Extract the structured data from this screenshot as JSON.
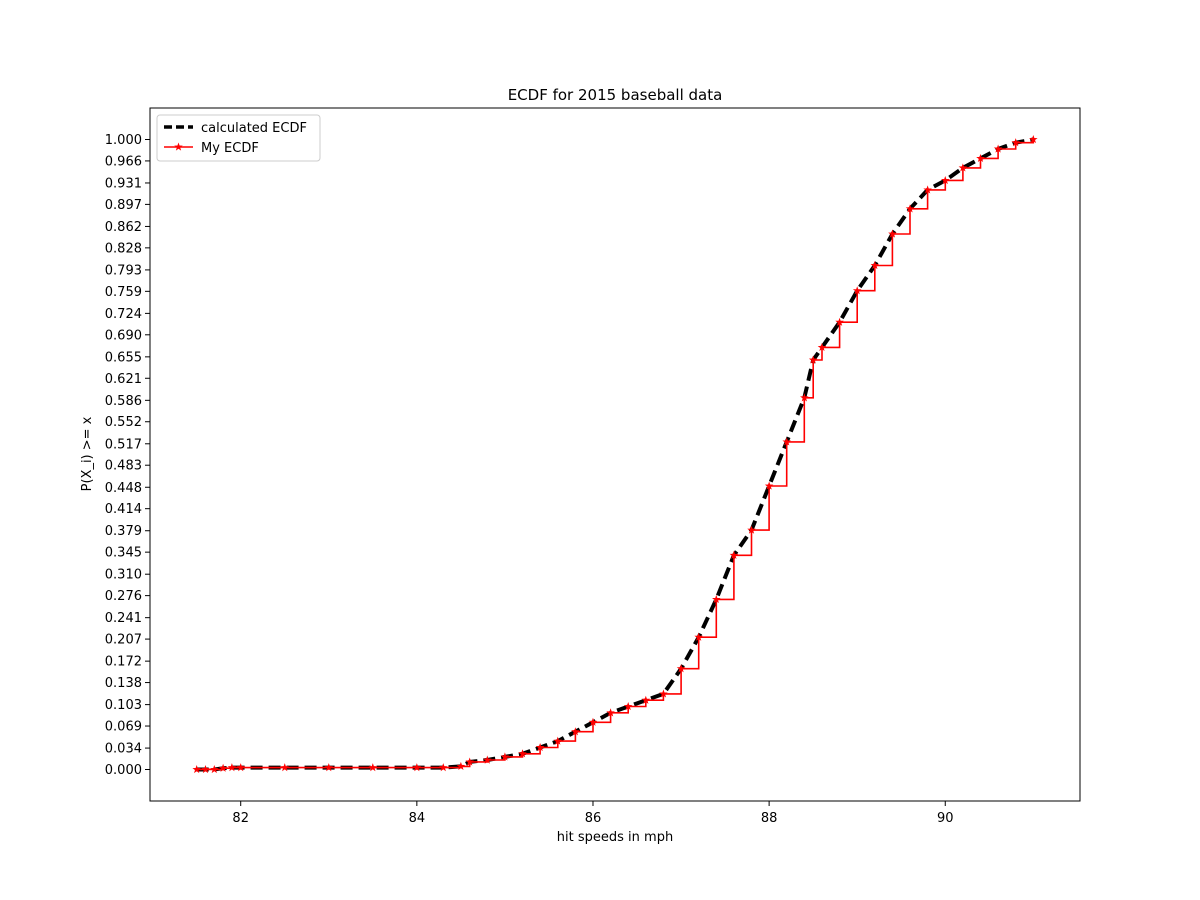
{
  "chart_data": {
    "type": "line",
    "title": "ECDF for 2015 baseball data",
    "xlabel": "hit speeds in mph",
    "ylabel": "P(X_i) >= x",
    "xlim": [
      80.97,
      91.53
    ],
    "ylim": [
      -0.05,
      1.05
    ],
    "x_ticks": [
      "82",
      "84",
      "86",
      "88",
      "90"
    ],
    "y_ticks": [
      "0.000",
      "0.034",
      "0.069",
      "0.103",
      "0.138",
      "0.172",
      "0.207",
      "0.241",
      "0.276",
      "0.310",
      "0.345",
      "0.379",
      "0.414",
      "0.448",
      "0.483",
      "0.517",
      "0.552",
      "0.586",
      "0.621",
      "0.655",
      "0.690",
      "0.724",
      "0.759",
      "0.793",
      "0.828",
      "0.862",
      "0.897",
      "0.931",
      "0.966",
      "1.000"
    ],
    "legend_position": "upper-left",
    "grid": false,
    "series": [
      {
        "name": "calculated ECDF",
        "color": "#000000",
        "style": "dashed",
        "x": [
          81.5,
          81.6,
          81.7,
          81.8,
          81.9,
          82.0,
          82.5,
          83.0,
          83.5,
          84.0,
          84.3,
          84.5,
          84.6,
          84.8,
          85.0,
          85.2,
          85.4,
          85.6,
          85.8,
          86.0,
          86.2,
          86.4,
          86.6,
          86.8,
          87.0,
          87.2,
          87.4,
          87.6,
          87.8,
          88.0,
          88.2,
          88.4,
          88.5,
          88.6,
          88.8,
          89.0,
          89.2,
          89.4,
          89.6,
          89.8,
          90.0,
          90.2,
          90.4,
          90.6,
          90.8,
          91.0
        ],
        "y": [
          0.0,
          0.0,
          0.0,
          0.002,
          0.003,
          0.003,
          0.003,
          0.003,
          0.003,
          0.003,
          0.003,
          0.005,
          0.012,
          0.015,
          0.02,
          0.025,
          0.035,
          0.045,
          0.06,
          0.075,
          0.09,
          0.1,
          0.11,
          0.12,
          0.16,
          0.21,
          0.27,
          0.34,
          0.38,
          0.45,
          0.52,
          0.59,
          0.65,
          0.67,
          0.71,
          0.76,
          0.8,
          0.85,
          0.89,
          0.92,
          0.935,
          0.955,
          0.97,
          0.985,
          0.995,
          1.0
        ]
      },
      {
        "name": "My ECDF",
        "color": "#ff0000",
        "style": "step-star",
        "x": [
          81.5,
          81.6,
          81.7,
          81.8,
          81.9,
          82.0,
          82.5,
          83.0,
          83.5,
          84.0,
          84.3,
          84.5,
          84.6,
          84.8,
          85.0,
          85.2,
          85.4,
          85.6,
          85.8,
          86.0,
          86.2,
          86.4,
          86.6,
          86.8,
          87.0,
          87.2,
          87.4,
          87.6,
          87.8,
          88.0,
          88.2,
          88.4,
          88.5,
          88.6,
          88.8,
          89.0,
          89.2,
          89.4,
          89.6,
          89.8,
          90.0,
          90.2,
          90.4,
          90.6,
          90.8,
          91.0
        ],
        "y": [
          0.0,
          0.0,
          0.0,
          0.002,
          0.003,
          0.003,
          0.003,
          0.003,
          0.003,
          0.003,
          0.003,
          0.005,
          0.012,
          0.015,
          0.02,
          0.025,
          0.035,
          0.045,
          0.06,
          0.075,
          0.09,
          0.1,
          0.11,
          0.12,
          0.16,
          0.21,
          0.27,
          0.34,
          0.38,
          0.45,
          0.52,
          0.59,
          0.65,
          0.67,
          0.71,
          0.76,
          0.8,
          0.85,
          0.89,
          0.92,
          0.935,
          0.955,
          0.97,
          0.985,
          0.995,
          1.0
        ]
      }
    ]
  }
}
